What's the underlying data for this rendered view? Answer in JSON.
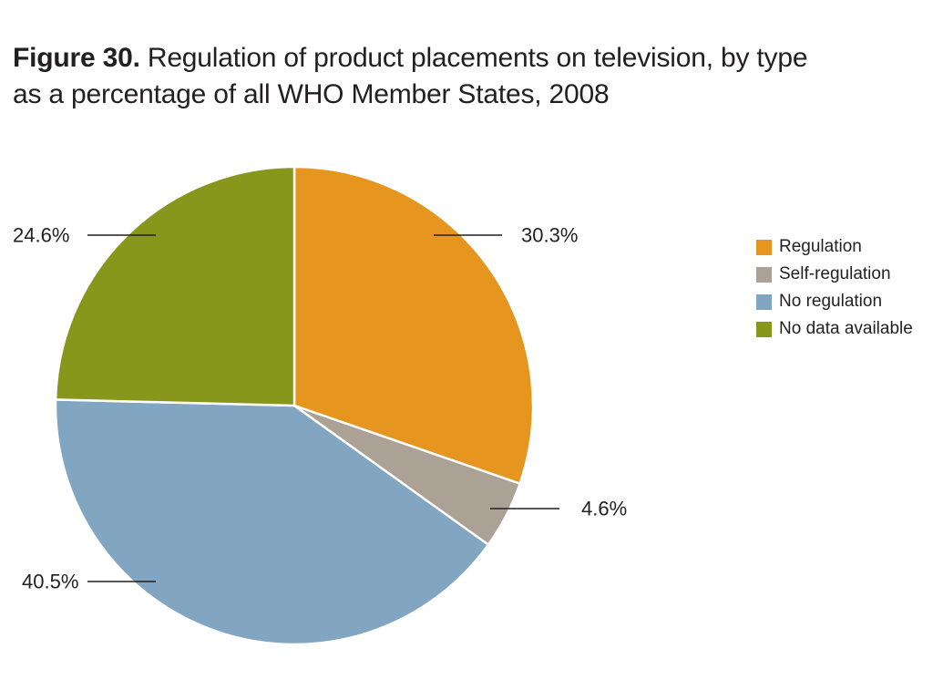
{
  "figure_label": "Figure 30.",
  "title_line_1": "Regulation of product placements on television, by type",
  "title_line_2": "as a percentage of all WHO Member States, 2008",
  "chart_data": {
    "type": "pie",
    "title": "Figure 30. Regulation of product placements on television, by type as a percentage of all WHO Member States, 2008",
    "categories": [
      "Regulation",
      "Self-regulation",
      "No regulation",
      "No data available"
    ],
    "values": [
      30.3,
      4.6,
      40.5,
      24.6
    ],
    "labels": [
      "30.3%",
      "4.6%",
      "40.5%",
      "24.6%"
    ],
    "colors": [
      "#e6961f",
      "#aca195",
      "#82a6c2",
      "#87971c"
    ],
    "start_angle_deg": 0,
    "direction": "clockwise",
    "legend_position": "right"
  }
}
